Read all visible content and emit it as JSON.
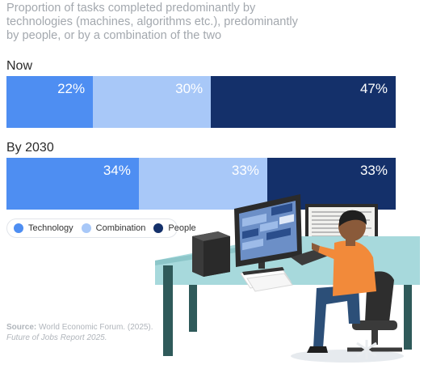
{
  "title": "Proportion of tasks completed predominantly by technologies (machines, algorithms etc.), predominantly by people, or by a combination of the two",
  "colors": {
    "technology": "#4e8ef2",
    "combination": "#a8c8f8",
    "people": "#14306a"
  },
  "chart_data": {
    "type": "bar",
    "orientation": "horizontal-stacked",
    "categories": [
      "Now",
      "By 2030"
    ],
    "series": [
      {
        "name": "Technology",
        "values": [
          22,
          34
        ],
        "labels": [
          "22%",
          "34%"
        ]
      },
      {
        "name": "Combination",
        "values": [
          30,
          33
        ],
        "labels": [
          "30%",
          "33%"
        ]
      },
      {
        "name": "People",
        "values": [
          47,
          33
        ],
        "labels": [
          "47%",
          "33%"
        ]
      }
    ],
    "unit": "%",
    "legend": [
      "Technology",
      "Combination",
      "People"
    ],
    "legend_position": "bottom-left"
  },
  "source": {
    "label": "Source:",
    "text": "World Economic Forum. (2025).",
    "publication": "Future of Jobs Report 2025."
  }
}
